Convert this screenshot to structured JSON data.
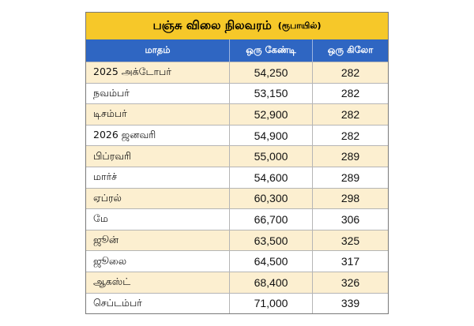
{
  "title": {
    "main": "பஞ்சு விலை நிலவரம்",
    "unit": "(ரூபாயில்)"
  },
  "headers": {
    "month": "மாதம்",
    "per_candy": "ஒரு கேண்டி",
    "per_kilo": "ஒரு கிலோ"
  },
  "colors": {
    "title_background": "#f6c829",
    "header_background": "#2f66c2",
    "stripe_background": "#fcefd0"
  },
  "rows": [
    {
      "month": "2025 அக்டோபர்",
      "candy": "54,250",
      "kilo": "282"
    },
    {
      "month": "நவம்பர்",
      "candy": "53,150",
      "kilo": "282"
    },
    {
      "month": "டிசம்பர்",
      "candy": "52,900",
      "kilo": "282"
    },
    {
      "month": "2026 ஜனவரி",
      "candy": "54,900",
      "kilo": "282"
    },
    {
      "month": "பிப்ரவரி",
      "candy": "55,000",
      "kilo": "289"
    },
    {
      "month": "மார்ச்",
      "candy": "54,600",
      "kilo": "289"
    },
    {
      "month": "ஏப்ரல்",
      "candy": "60,300",
      "kilo": "298"
    },
    {
      "month": "மே",
      "candy": "66,700",
      "kilo": "306"
    },
    {
      "month": "ஜூன்",
      "candy": "63,500",
      "kilo": "325"
    },
    {
      "month": "ஜூலை",
      "candy": "64,500",
      "kilo": "317"
    },
    {
      "month": "ஆகஸ்ட்",
      "candy": "68,400",
      "kilo": "326"
    },
    {
      "month": "செப்டம்பர்",
      "candy": "71,000",
      "kilo": "339"
    }
  ]
}
